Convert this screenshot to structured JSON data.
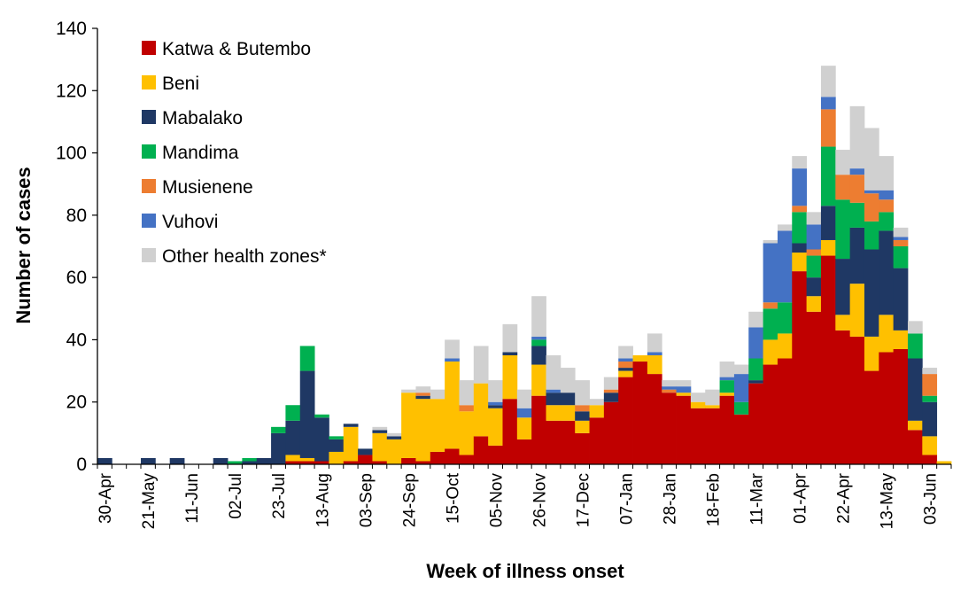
{
  "chart_data": {
    "type": "bar",
    "stacked": true,
    "title": "",
    "xlabel": "Week of illness onset",
    "ylabel": "Number of cases",
    "ylim": [
      0,
      140
    ],
    "yticks": [
      0,
      20,
      40,
      60,
      80,
      100,
      120,
      140
    ],
    "grid": false,
    "legend_position": "top-left",
    "week_starts": [
      "30-Apr",
      "07-May",
      "14-May",
      "21-May",
      "28-May",
      "04-Jun",
      "11-Jun",
      "18-Jun",
      "25-Jun",
      "02-Jul",
      "09-Jul",
      "16-Jul",
      "23-Jul",
      "30-Jul",
      "06-Aug",
      "13-Aug",
      "20-Aug",
      "27-Aug",
      "03-Sep",
      "10-Sep",
      "17-Sep",
      "24-Sep",
      "01-Oct",
      "08-Oct",
      "15-Oct",
      "22-Oct",
      "29-Oct",
      "05-Nov",
      "12-Nov",
      "19-Nov",
      "26-Nov",
      "03-Dec",
      "10-Dec",
      "17-Dec",
      "24-Dec",
      "31-Dec",
      "07-Jan",
      "14-Jan",
      "21-Jan",
      "28-Jan",
      "04-Feb",
      "11-Feb",
      "18-Feb",
      "25-Feb",
      "04-Mar",
      "11-Mar",
      "18-Mar",
      "25-Mar",
      "01-Apr",
      "08-Apr",
      "15-Apr",
      "22-Apr",
      "29-Apr",
      "06-May",
      "13-May",
      "20-May",
      "27-May",
      "03-Jun",
      "10-Jun"
    ],
    "tick_labels": [
      "30-Apr",
      "21-May",
      "11-Jun",
      "02-Jul",
      "23-Jul",
      "13-Aug",
      "03-Sep",
      "24-Sep",
      "15-Oct",
      "05-Nov",
      "26-Nov",
      "17-Dec",
      "07-Jan",
      "28-Jan",
      "18-Feb",
      "11-Mar",
      "01-Apr",
      "22-Apr",
      "13-May",
      "03-Jun"
    ],
    "series": [
      {
        "name": "Katwa & Butembo",
        "color": "#c00000",
        "values": [
          0,
          0,
          0,
          0,
          0,
          0,
          0,
          0,
          0,
          0,
          0,
          0,
          0,
          1,
          1,
          1,
          0,
          1,
          3,
          1,
          0,
          2,
          1,
          4,
          5,
          3,
          9,
          6,
          21,
          8,
          22,
          14,
          14,
          10,
          15,
          20,
          28,
          33,
          29,
          23,
          22,
          18,
          18,
          22,
          16,
          26,
          32,
          34,
          62,
          49,
          67,
          43,
          41,
          30,
          36,
          37,
          11,
          3,
          0
        ]
      },
      {
        "name": "Beni",
        "color": "#ffc000",
        "values": [
          0,
          0,
          0,
          0,
          0,
          0,
          0,
          0,
          0,
          0,
          0,
          0,
          0,
          2,
          1,
          0,
          4,
          11,
          0,
          9,
          8,
          21,
          20,
          17,
          28,
          14,
          17,
          12,
          14,
          7,
          10,
          5,
          5,
          4,
          4,
          0,
          2,
          2,
          6,
          0,
          1,
          2,
          1,
          1,
          0,
          0,
          8,
          8,
          6,
          5,
          5,
          5,
          17,
          11,
          12,
          6,
          3,
          6,
          1
        ]
      },
      {
        "name": "Mabalako",
        "color": "#1f3864",
        "values": [
          2,
          0,
          0,
          2,
          0,
          2,
          0,
          0,
          2,
          0,
          1,
          2,
          10,
          11,
          28,
          14,
          4,
          1,
          2,
          1,
          1,
          0,
          1,
          0,
          0,
          0,
          0,
          1,
          1,
          0,
          6,
          4,
          4,
          3,
          0,
          3,
          1,
          0,
          0,
          0,
          0,
          0,
          0,
          0,
          0,
          1,
          0,
          0,
          3,
          6,
          11,
          18,
          18,
          28,
          27,
          20,
          20,
          11,
          0
        ]
      },
      {
        "name": "Mandima",
        "color": "#00b050",
        "values": [
          0,
          0,
          0,
          0,
          0,
          0,
          0,
          0,
          0,
          1,
          1,
          0,
          2,
          5,
          8,
          1,
          1,
          0,
          0,
          0,
          0,
          0,
          0,
          0,
          0,
          0,
          0,
          0,
          0,
          0,
          2,
          0,
          0,
          0,
          0,
          0,
          0,
          0,
          0,
          0,
          0,
          0,
          0,
          4,
          4,
          7,
          10,
          10,
          10,
          7,
          19,
          19,
          8,
          9,
          6,
          7,
          8,
          2,
          0
        ]
      },
      {
        "name": "Musienene",
        "color": "#ed7d31",
        "values": [
          0,
          0,
          0,
          0,
          0,
          0,
          0,
          0,
          0,
          0,
          0,
          0,
          0,
          0,
          0,
          0,
          0,
          0,
          0,
          0,
          0,
          0,
          1,
          0,
          0,
          2,
          0,
          0,
          0,
          0,
          0,
          0,
          0,
          2,
          0,
          1,
          2,
          0,
          0,
          1,
          0,
          0,
          0,
          0,
          0,
          0,
          2,
          0,
          2,
          2,
          12,
          8,
          9,
          9,
          4,
          2,
          0,
          7,
          0
        ]
      },
      {
        "name": "Vuhovi",
        "color": "#4472c4",
        "values": [
          0,
          0,
          0,
          0,
          0,
          0,
          0,
          0,
          0,
          0,
          0,
          0,
          0,
          0,
          0,
          0,
          0,
          0,
          0,
          0,
          0,
          0,
          0,
          0,
          1,
          0,
          0,
          1,
          0,
          3,
          1,
          1,
          0,
          0,
          0,
          0,
          1,
          0,
          1,
          1,
          2,
          0,
          0,
          1,
          9,
          10,
          19,
          23,
          12,
          8,
          4,
          0,
          2,
          1,
          3,
          1,
          0,
          0,
          0
        ]
      },
      {
        "name": "Other health zones*",
        "color": "#d0d0d0",
        "values": [
          0,
          0,
          0,
          0,
          0,
          0,
          0,
          0,
          0,
          0,
          0,
          0,
          0,
          0,
          0,
          0,
          0,
          0,
          0,
          1,
          1,
          1,
          2,
          3,
          6,
          8,
          12,
          7,
          9,
          6,
          13,
          11,
          8,
          8,
          2,
          4,
          4,
          0,
          6,
          2,
          2,
          3,
          5,
          5,
          3,
          5,
          1,
          2,
          4,
          4,
          10,
          8,
          20,
          20,
          11,
          3,
          4,
          2,
          0
        ]
      }
    ]
  }
}
